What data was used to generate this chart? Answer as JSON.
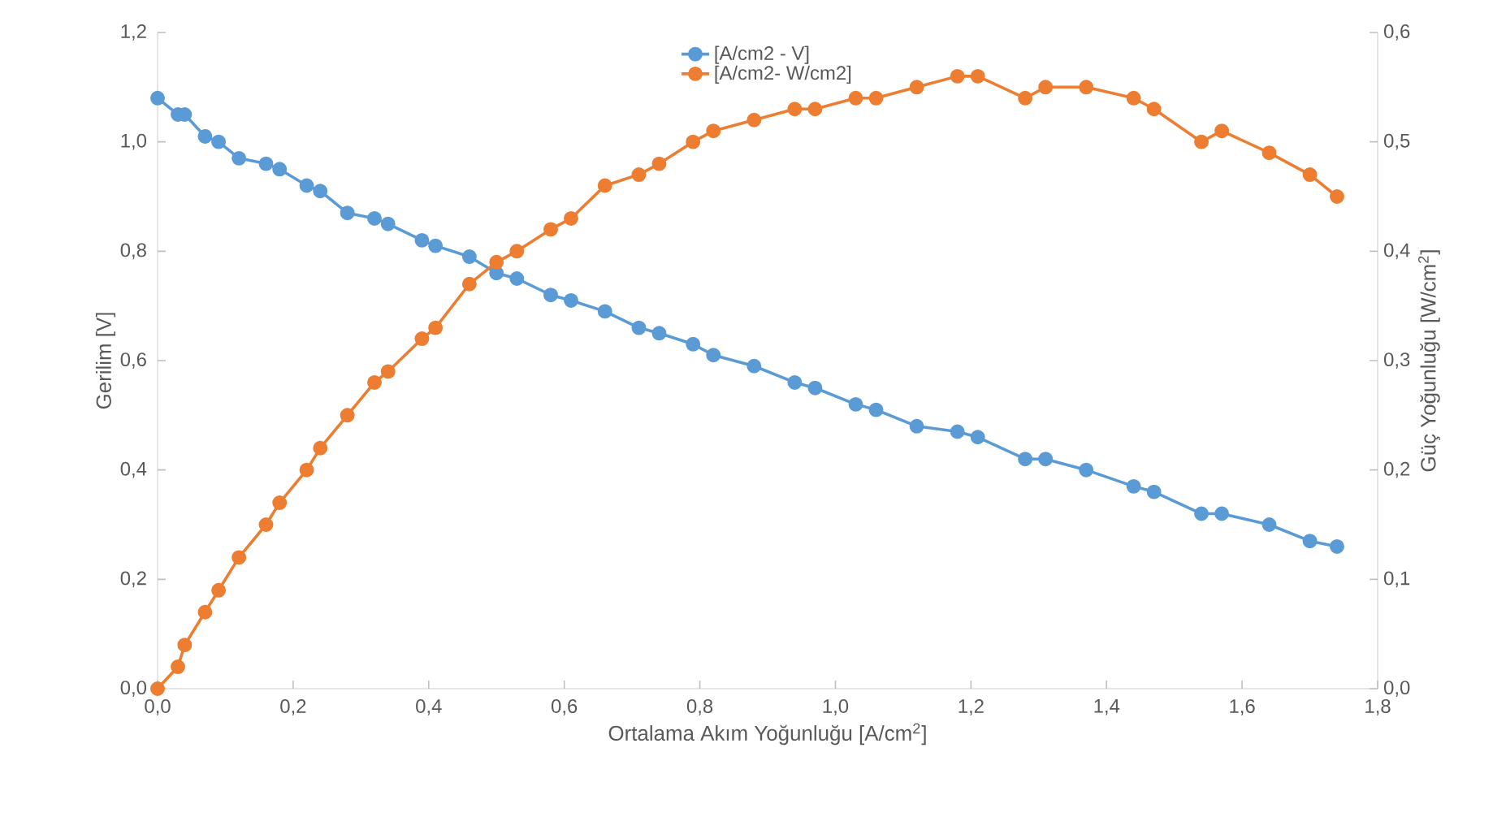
{
  "chart_data": {
    "type": "line",
    "xlabel": "Ortalama Akım Yoğunluğu [A/cm$^{2}$]",
    "ylabel": "Gerilim  [V]",
    "y2label": "Güç Yoğunluğu [W/cm$^{2}$]",
    "x": [
      0.0,
      0.03,
      0.04,
      0.07,
      0.09,
      0.12,
      0.16,
      0.18,
      0.22,
      0.24,
      0.28,
      0.32,
      0.34,
      0.39,
      0.41,
      0.46,
      0.5,
      0.53,
      0.58,
      0.61,
      0.66,
      0.71,
      0.74,
      0.79,
      0.82,
      0.88,
      0.94,
      0.97,
      1.03,
      1.06,
      1.12,
      1.18,
      1.21,
      1.28,
      1.31,
      1.37,
      1.44,
      1.47,
      1.54,
      1.57,
      1.64,
      1.7,
      1.74
    ],
    "series": [
      {
        "name": "[A/cm2 - V]",
        "color": "#5b9bd5",
        "values": [
          1.08,
          1.05,
          1.05,
          1.01,
          1.0,
          0.97,
          0.96,
          0.95,
          0.92,
          0.91,
          0.87,
          0.86,
          0.85,
          0.82,
          0.81,
          0.79,
          0.76,
          0.75,
          0.72,
          0.71,
          0.69,
          0.66,
          0.65,
          0.63,
          0.61,
          0.59,
          0.56,
          0.55,
          0.52,
          0.51,
          0.48,
          0.47,
          0.46,
          0.42,
          0.42,
          0.4,
          0.37,
          0.36,
          0.32,
          0.32,
          0.3,
          0.27,
          0.26
        ]
      },
      {
        "name": "[A/cm2- W/cm2]",
        "color": "#ed7d31",
        "axis": "y2",
        "values": [
          0.0,
          0.02,
          0.04,
          0.07,
          0.09,
          0.12,
          0.15,
          0.17,
          0.2,
          0.22,
          0.25,
          0.28,
          0.29,
          0.32,
          0.33,
          0.37,
          0.39,
          0.4,
          0.42,
          0.43,
          0.46,
          0.47,
          0.48,
          0.5,
          0.51,
          0.52,
          0.53,
          0.53,
          0.54,
          0.54,
          0.55,
          0.56,
          0.56,
          0.54,
          0.55,
          0.55,
          0.54,
          0.53,
          0.5,
          0.51,
          0.49,
          0.47,
          0.45
        ]
      }
    ],
    "xlim": [
      0,
      1.8
    ],
    "xticks": [
      {
        "value": 0,
        "label": "0,0"
      },
      {
        "value": 0.2,
        "label": "0,2"
      },
      {
        "value": 0.4,
        "label": "0,4"
      },
      {
        "value": 0.6,
        "label": "0,6"
      },
      {
        "value": 0.8,
        "label": "0,8"
      },
      {
        "value": 1.0,
        "label": "1,0"
      },
      {
        "value": 1.2,
        "label": "1,2"
      },
      {
        "value": 1.4,
        "label": "1,4"
      },
      {
        "value": 1.6,
        "label": "1,6"
      },
      {
        "value": 1.8,
        "label": "1,8"
      }
    ],
    "ylim": [
      0,
      1.2
    ],
    "yticks": [
      {
        "value": 0,
        "label": "0,0"
      },
      {
        "value": 0.2,
        "label": "0,2"
      },
      {
        "value": 0.4,
        "label": "0,4"
      },
      {
        "value": 0.6,
        "label": "0,6"
      },
      {
        "value": 0.8,
        "label": "0,8"
      },
      {
        "value": 1.0,
        "label": "1,0"
      },
      {
        "value": 1.2,
        "label": "1,2"
      }
    ],
    "y2lim": [
      0,
      0.6
    ],
    "y2ticks": [
      {
        "value": 0,
        "label": "0,0"
      },
      {
        "value": 0.1,
        "label": "0,1"
      },
      {
        "value": 0.2,
        "label": "0,2"
      },
      {
        "value": 0.3,
        "label": "0,3"
      },
      {
        "value": 0.4,
        "label": "0,4"
      },
      {
        "value": 0.5,
        "label": "0,5"
      },
      {
        "value": 0.6,
        "label": "0,6"
      }
    ],
    "grid": false,
    "legend": "top",
    "marker": "circle",
    "line_style": "solid"
  }
}
